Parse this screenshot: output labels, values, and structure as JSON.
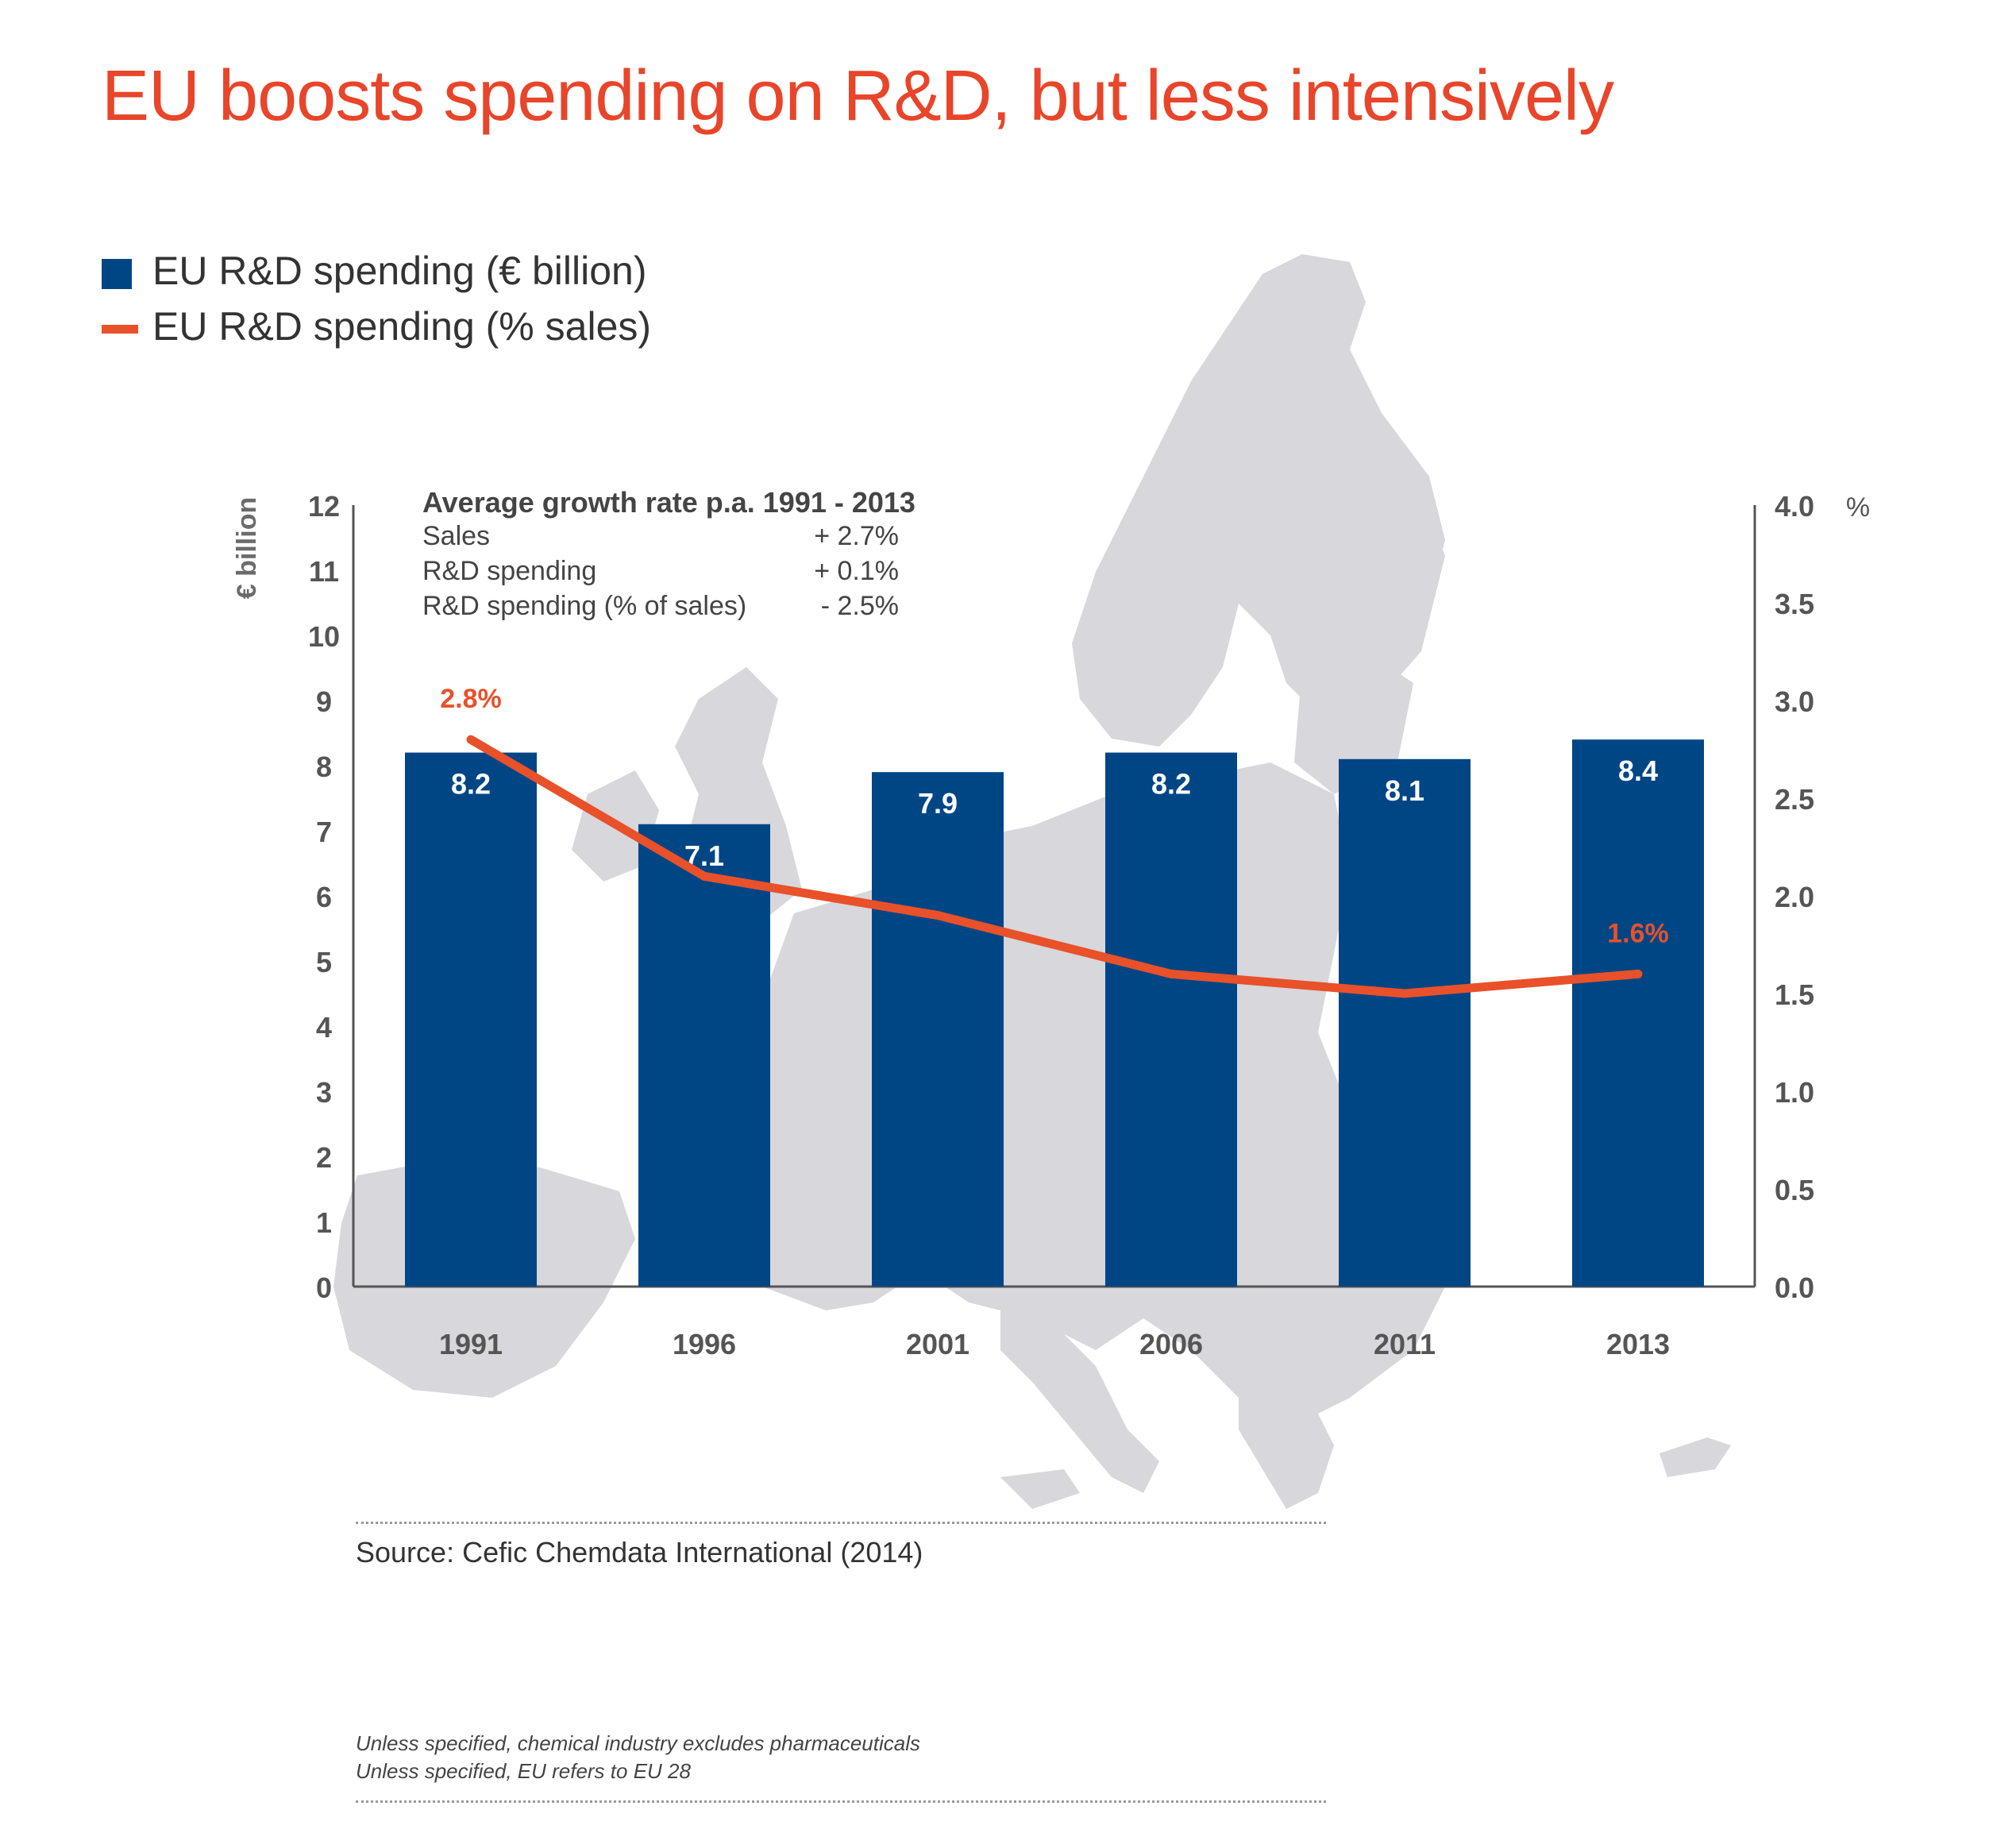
{
  "title": "EU boosts spending on R&D, but less intensively",
  "legend": {
    "bar_label": "EU R&D spending (€ billion)",
    "line_label": "EU R&D spending (% sales)"
  },
  "colors": {
    "title": "#e8452a",
    "bar": "#004685",
    "line": "#e8512a",
    "map": "#d7d7dc",
    "axis": "#555555"
  },
  "chart_data": {
    "type": "bar+line",
    "categories": [
      "1991",
      "1996",
      "2001",
      "2006",
      "2011",
      "2013"
    ],
    "series": [
      {
        "name": "EU R&D spending (€ billion)",
        "type": "bar",
        "axis": "left",
        "values": [
          8.2,
          7.1,
          7.9,
          8.2,
          8.1,
          8.4
        ],
        "labels": [
          "8.2",
          "7.1",
          "7.9",
          "8.2",
          "8.1",
          "8.4"
        ]
      },
      {
        "name": "EU R&D spending (% sales)",
        "type": "line",
        "axis": "right",
        "values": [
          2.8,
          2.1,
          1.9,
          1.6,
          1.5,
          1.6
        ],
        "labels": [
          "2.8%",
          "",
          "",
          "",
          "",
          "1.6%"
        ]
      }
    ],
    "left_axis": {
      "label": "€ billion",
      "min": 0,
      "max": 12,
      "ticks": [
        "0",
        "1",
        "2",
        "3",
        "4",
        "5",
        "6",
        "7",
        "8",
        "9",
        "10",
        "11",
        "12"
      ]
    },
    "right_axis": {
      "label": "%",
      "min": 0,
      "max": 4,
      "ticks": [
        "0.0",
        "0.5",
        "1.0",
        "1.5",
        "2.0",
        "2.5",
        "3.0",
        "3.5",
        "4.0"
      ]
    },
    "growth_box": {
      "title": "Average  growth rate p.a. 1991 - 2013",
      "rows": [
        {
          "label": "Sales",
          "value": "+ 2.7%"
        },
        {
          "label": "R&D spending",
          "value": "+ 0.1%"
        },
        {
          "label": "R&D spending (% of sales)",
          "value": "-  2.5%"
        }
      ]
    }
  },
  "source": "Source: Cefic Chemdata International (2014)",
  "notes": [
    "Unless specified, chemical industry excludes pharmaceuticals",
    "Unless specified, EU refers to EU 28"
  ]
}
